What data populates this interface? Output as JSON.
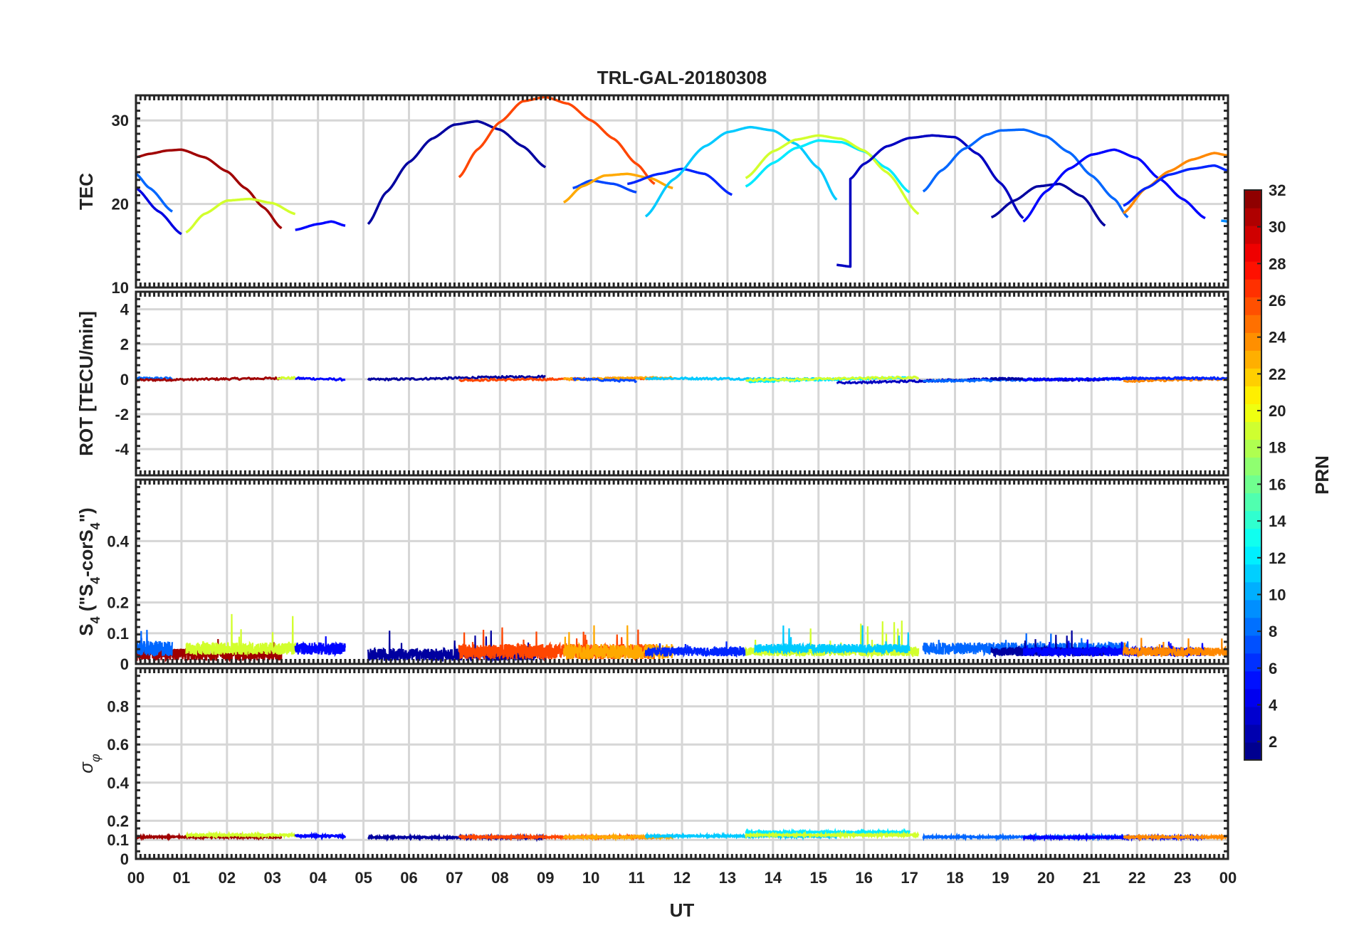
{
  "chart_data": {
    "type": "line",
    "title": "TRL-GAL-20180308",
    "xlabel": "UT",
    "xlim": [
      0,
      24
    ],
    "x_tick_values": [
      0,
      1,
      2,
      3,
      4,
      5,
      6,
      7,
      8,
      9,
      10,
      11,
      12,
      13,
      14,
      15,
      16,
      17,
      18,
      19,
      20,
      21,
      22,
      23,
      24
    ],
    "x_tick_labels": [
      "00",
      "01",
      "02",
      "03",
      "04",
      "05",
      "06",
      "07",
      "08",
      "09",
      "10",
      "11",
      "12",
      "13",
      "14",
      "15",
      "16",
      "17",
      "18",
      "19",
      "20",
      "21",
      "22",
      "23",
      "00"
    ],
    "colorbar": {
      "label": "PRN",
      "range": [
        1,
        32
      ],
      "tick_values": [
        2,
        4,
        6,
        8,
        10,
        12,
        14,
        16,
        18,
        20,
        22,
        24,
        26,
        28,
        30,
        32
      ],
      "tick_labels": [
        "2",
        "4",
        "6",
        "8",
        "10",
        "12",
        "14",
        "16",
        "18",
        "20",
        "22",
        "24",
        "26",
        "28",
        "30",
        "32"
      ]
    },
    "panels": [
      {
        "id": "tec",
        "ylabel": "TEC",
        "ylim": [
          10,
          33
        ],
        "y_tick_values": [
          10,
          20,
          30
        ],
        "y_tick_labels": [
          "10",
          "20",
          "30"
        ],
        "series": [
          {
            "prn": 31,
            "x": [
              0,
              0.3,
              0.7,
              1.0,
              1.5,
              2.0,
              2.4,
              2.8,
              3.2
            ],
            "y": [
              25.6,
              26.0,
              26.4,
              26.5,
              25.6,
              23.9,
              21.9,
              19.6,
              17.1
            ]
          },
          {
            "prn": 8,
            "x": [
              0,
              0.3,
              0.8
            ],
            "y": [
              23.6,
              21.9,
              19.1
            ]
          },
          {
            "prn": 4,
            "x": [
              0,
              0.5,
              1.0
            ],
            "y": [
              21.9,
              19.1,
              16.4
            ]
          },
          {
            "prn": 19,
            "x": [
              1.1,
              1.5,
              2.0,
              2.5,
              3.0,
              3.5
            ],
            "y": [
              16.6,
              18.8,
              20.4,
              20.6,
              20.1,
              18.8
            ]
          },
          {
            "prn": 5,
            "x": [
              3.5,
              4.0,
              4.3,
              4.6
            ],
            "y": [
              16.9,
              17.6,
              17.9,
              17.4
            ]
          },
          {
            "prn": 2,
            "x": [
              5.1,
              5.5,
              6.0,
              6.5,
              7.0,
              7.5,
              8.0,
              8.5,
              9.0
            ],
            "y": [
              17.6,
              21.4,
              25.0,
              27.8,
              29.5,
              29.9,
              28.9,
              26.9,
              24.4
            ]
          },
          {
            "prn": 26,
            "x": [
              7.1,
              7.5,
              8.0,
              8.5,
              9.0,
              9.5,
              10.0,
              10.5,
              11.0,
              11.4
            ],
            "y": [
              23.2,
              26.5,
              29.8,
              32.3,
              32.8,
              32.0,
              30.0,
              27.8,
              24.8,
              22.4
            ]
          },
          {
            "prn": 7,
            "x": [
              9.6,
              10.0,
              10.5,
              11.0
            ],
            "y": [
              21.9,
              22.8,
              22.4,
              21.4
            ]
          },
          {
            "prn": 23,
            "x": [
              9.4,
              9.8,
              10.3,
              10.8,
              11.3,
              11.8
            ],
            "y": [
              20.2,
              22.1,
              23.4,
              23.6,
              23.1,
              21.9
            ]
          },
          {
            "prn": 6,
            "x": [
              10.8,
              11.5,
              12.0,
              12.5,
              13.1
            ],
            "y": [
              22.4,
              23.6,
              24.2,
              23.6,
              21.1
            ]
          },
          {
            "prn": 11,
            "x": [
              11.2,
              11.8,
              12.5,
              13.0,
              13.5,
              14.0,
              14.5,
              15.0,
              15.4
            ],
            "y": [
              18.5,
              22.9,
              26.9,
              28.6,
              29.2,
              28.8,
              27.2,
              24.3,
              20.5
            ]
          },
          {
            "prn": 12,
            "x": [
              13.4,
              14.0,
              14.5,
              15.0,
              15.5,
              16.0,
              16.5,
              17.0
            ],
            "y": [
              22.1,
              24.9,
              26.7,
              27.6,
              27.4,
              26.3,
              24.3,
              21.4
            ]
          },
          {
            "prn": 19,
            "x": [
              13.4,
              14.0,
              14.5,
              15.0,
              15.5,
              16.0,
              16.5,
              17.2
            ],
            "y": [
              23.1,
              26.3,
              27.7,
              28.2,
              27.8,
              26.4,
              23.8,
              18.8
            ]
          },
          {
            "prn": 3,
            "x": [
              15.4,
              15.7,
              15.7,
              15.7,
              16.0,
              16.5,
              17.0,
              17.5,
              18.0,
              18.5,
              19.0,
              19.5
            ],
            "y": [
              12.7,
              12.5,
              12.5,
              23.0,
              24.8,
              26.9,
              27.9,
              28.2,
              28.0,
              26.0,
              22.5,
              18.3
            ]
          },
          {
            "prn": 8,
            "x": [
              17.3,
              17.7,
              18.2,
              18.7,
              19.0,
              19.5,
              20.0,
              20.5,
              21.0,
              21.5,
              21.8
            ],
            "y": [
              21.5,
              24.0,
              26.6,
              28.3,
              28.8,
              28.9,
              28.1,
              26.2,
              23.4,
              20.6,
              18.4
            ]
          },
          {
            "prn": 2,
            "x": [
              18.8,
              19.3,
              19.8,
              20.3,
              20.8,
              21.3
            ],
            "y": [
              18.4,
              20.4,
              22.1,
              22.4,
              20.9,
              17.4
            ]
          },
          {
            "prn": 5,
            "x": [
              19.5,
              20.0,
              20.5,
              21.0,
              21.5,
              22.0,
              22.5,
              23.0,
              23.5
            ],
            "y": [
              17.9,
              21.5,
              24.2,
              25.9,
              26.5,
              25.5,
              23.0,
              20.6,
              18.3
            ]
          },
          {
            "prn": 24,
            "x": [
              21.7,
              22.2,
              22.7,
              23.2,
              23.7,
              24.0
            ],
            "y": [
              18.9,
              21.9,
              23.9,
              25.3,
              26.1,
              25.8
            ]
          },
          {
            "prn": 6,
            "x": [
              21.7,
              22.2,
              22.7,
              23.2,
              23.7,
              24.0
            ],
            "y": [
              19.8,
              21.9,
              23.5,
              24.2,
              24.6,
              24.0
            ]
          },
          {
            "prn": 9,
            "x": [
              23.85,
              24.0
            ],
            "y": [
              18.0,
              17.9
            ]
          }
        ]
      },
      {
        "id": "rot",
        "ylabel": "ROT [TECU/min]",
        "ylim": [
          -5.5,
          5
        ],
        "y_tick_values": [
          -4,
          -2,
          0,
          2,
          4
        ],
        "y_tick_labels": [
          "-4",
          "-2",
          "0",
          "2",
          "4"
        ],
        "series": [
          {
            "prn": 8,
            "x": [
              0,
              0.8
            ],
            "y": [
              0.05,
              0.05
            ]
          },
          {
            "prn": 31,
            "x": [
              0,
              3.2
            ],
            "y": [
              -0.05,
              0.05
            ]
          },
          {
            "prn": 19,
            "x": [
              3.1,
              3.5
            ],
            "y": [
              0.08,
              0.06
            ]
          },
          {
            "prn": 5,
            "x": [
              3.5,
              4.6
            ],
            "y": [
              0.05,
              -0.02
            ]
          },
          {
            "prn": 2,
            "x": [
              5.1,
              9.0
            ],
            "y": [
              -0.02,
              0.15
            ]
          },
          {
            "prn": 26,
            "x": [
              7.1,
              11.4
            ],
            "y": [
              -0.05,
              0.05
            ]
          },
          {
            "prn": 23,
            "x": [
              9.4,
              11.8
            ],
            "y": [
              0.0,
              0.08
            ]
          },
          {
            "prn": 7,
            "x": [
              9.6,
              11.0
            ],
            "y": [
              0.0,
              -0.1
            ]
          },
          {
            "prn": 11,
            "x": [
              11.2,
              15.4
            ],
            "y": [
              0.05,
              0.0
            ]
          },
          {
            "prn": 12,
            "x": [
              13.4,
              17.0
            ],
            "y": [
              -0.12,
              0.08
            ]
          },
          {
            "prn": 19,
            "x": [
              13.4,
              17.2
            ],
            "y": [
              -0.05,
              0.1
            ]
          },
          {
            "prn": 3,
            "x": [
              15.4,
              19.5
            ],
            "y": [
              -0.2,
              0.03
            ]
          },
          {
            "prn": 8,
            "x": [
              17.3,
              21.8
            ],
            "y": [
              -0.1,
              0.02
            ]
          },
          {
            "prn": 2,
            "x": [
              18.8,
              21.3
            ],
            "y": [
              0.02,
              -0.05
            ]
          },
          {
            "prn": 5,
            "x": [
              19.5,
              23.5
            ],
            "y": [
              -0.02,
              0.05
            ]
          },
          {
            "prn": 24,
            "x": [
              21.7,
              24.0
            ],
            "y": [
              -0.1,
              0.0
            ]
          },
          {
            "prn": 6,
            "x": [
              21.7,
              24.0
            ],
            "y": [
              0.05,
              0.05
            ]
          }
        ]
      },
      {
        "id": "s4",
        "ylabel": "S4 (\"S4-corS4\")",
        "ylim": [
          0,
          0.6
        ],
        "y_tick_values": [
          0,
          0.1,
          0.2,
          0.4
        ],
        "y_tick_labels": [
          "0",
          "0.1",
          "0.2",
          "0.4"
        ],
        "series": [
          {
            "prn": 31,
            "x": [
              0,
              3.2
            ],
            "base": 0.03,
            "amp": 0.04,
            "spike": 0.09
          },
          {
            "prn": 8,
            "x": [
              0,
              0.8
            ],
            "base": 0.05,
            "amp": 0.05,
            "spike": 0.12
          },
          {
            "prn": 19,
            "x": [
              1.1,
              3.5
            ],
            "base": 0.05,
            "amp": 0.04,
            "spike": 0.17
          },
          {
            "prn": 5,
            "x": [
              3.5,
              4.6
            ],
            "base": 0.05,
            "amp": 0.04,
            "spike": 0.11
          },
          {
            "prn": 2,
            "x": [
              5.1,
              9.0
            ],
            "base": 0.03,
            "amp": 0.04,
            "spike": 0.11
          },
          {
            "prn": 26,
            "x": [
              7.1,
              11.4
            ],
            "base": 0.04,
            "amp": 0.05,
            "spike": 0.12
          },
          {
            "prn": 23,
            "x": [
              9.4,
              11.8
            ],
            "base": 0.04,
            "amp": 0.05,
            "spike": 0.14
          },
          {
            "prn": 6,
            "x": [
              11.2,
              13.4
            ],
            "base": 0.04,
            "amp": 0.03,
            "spike": 0.08
          },
          {
            "prn": 19,
            "x": [
              13.4,
              17.2
            ],
            "base": 0.04,
            "amp": 0.03,
            "spike": 0.15
          },
          {
            "prn": 11,
            "x": [
              13.6,
              17.0
            ],
            "base": 0.05,
            "amp": 0.03,
            "spike": 0.13
          },
          {
            "prn": 8,
            "x": [
              17.3,
              21.8
            ],
            "base": 0.05,
            "amp": 0.04,
            "spike": 0.1
          },
          {
            "prn": 2,
            "x": [
              18.8,
              21.3
            ],
            "base": 0.04,
            "amp": 0.03,
            "spike": 0.11
          },
          {
            "prn": 5,
            "x": [
              19.5,
              23.5
            ],
            "base": 0.04,
            "amp": 0.03,
            "spike": 0.08
          },
          {
            "prn": 24,
            "x": [
              21.7,
              24.0
            ],
            "base": 0.04,
            "amp": 0.03,
            "spike": 0.09
          }
        ]
      },
      {
        "id": "sigma",
        "ylabel": "σφ",
        "ylim": [
          0,
          1
        ],
        "y_tick_values": [
          0,
          0.1,
          0.2,
          0.4,
          0.6,
          0.8
        ],
        "y_tick_labels": [
          "0",
          "0.1",
          "0.2",
          "0.4",
          "0.6",
          "0.8"
        ],
        "series": [
          {
            "prn": 31,
            "x": [
              0,
              3.2
            ],
            "base": 0.115
          },
          {
            "prn": 19,
            "x": [
              1.1,
              3.5
            ],
            "base": 0.125
          },
          {
            "prn": 5,
            "x": [
              3.5,
              4.6
            ],
            "base": 0.12
          },
          {
            "prn": 2,
            "x": [
              5.1,
              9.0
            ],
            "base": 0.113
          },
          {
            "prn": 26,
            "x": [
              7.1,
              11.4
            ],
            "base": 0.115
          },
          {
            "prn": 23,
            "x": [
              9.4,
              11.8
            ],
            "base": 0.115
          },
          {
            "prn": 11,
            "x": [
              11.2,
              15.4
            ],
            "base": 0.12
          },
          {
            "prn": 12,
            "x": [
              13.4,
              17.0
            ],
            "base": 0.14
          },
          {
            "prn": 19,
            "x": [
              13.4,
              17.2
            ],
            "base": 0.125
          },
          {
            "prn": 8,
            "x": [
              17.3,
              21.8
            ],
            "base": 0.115
          },
          {
            "prn": 5,
            "x": [
              19.5,
              23.5
            ],
            "base": 0.113
          },
          {
            "prn": 24,
            "x": [
              21.7,
              24.0
            ],
            "base": 0.115
          }
        ]
      }
    ]
  }
}
